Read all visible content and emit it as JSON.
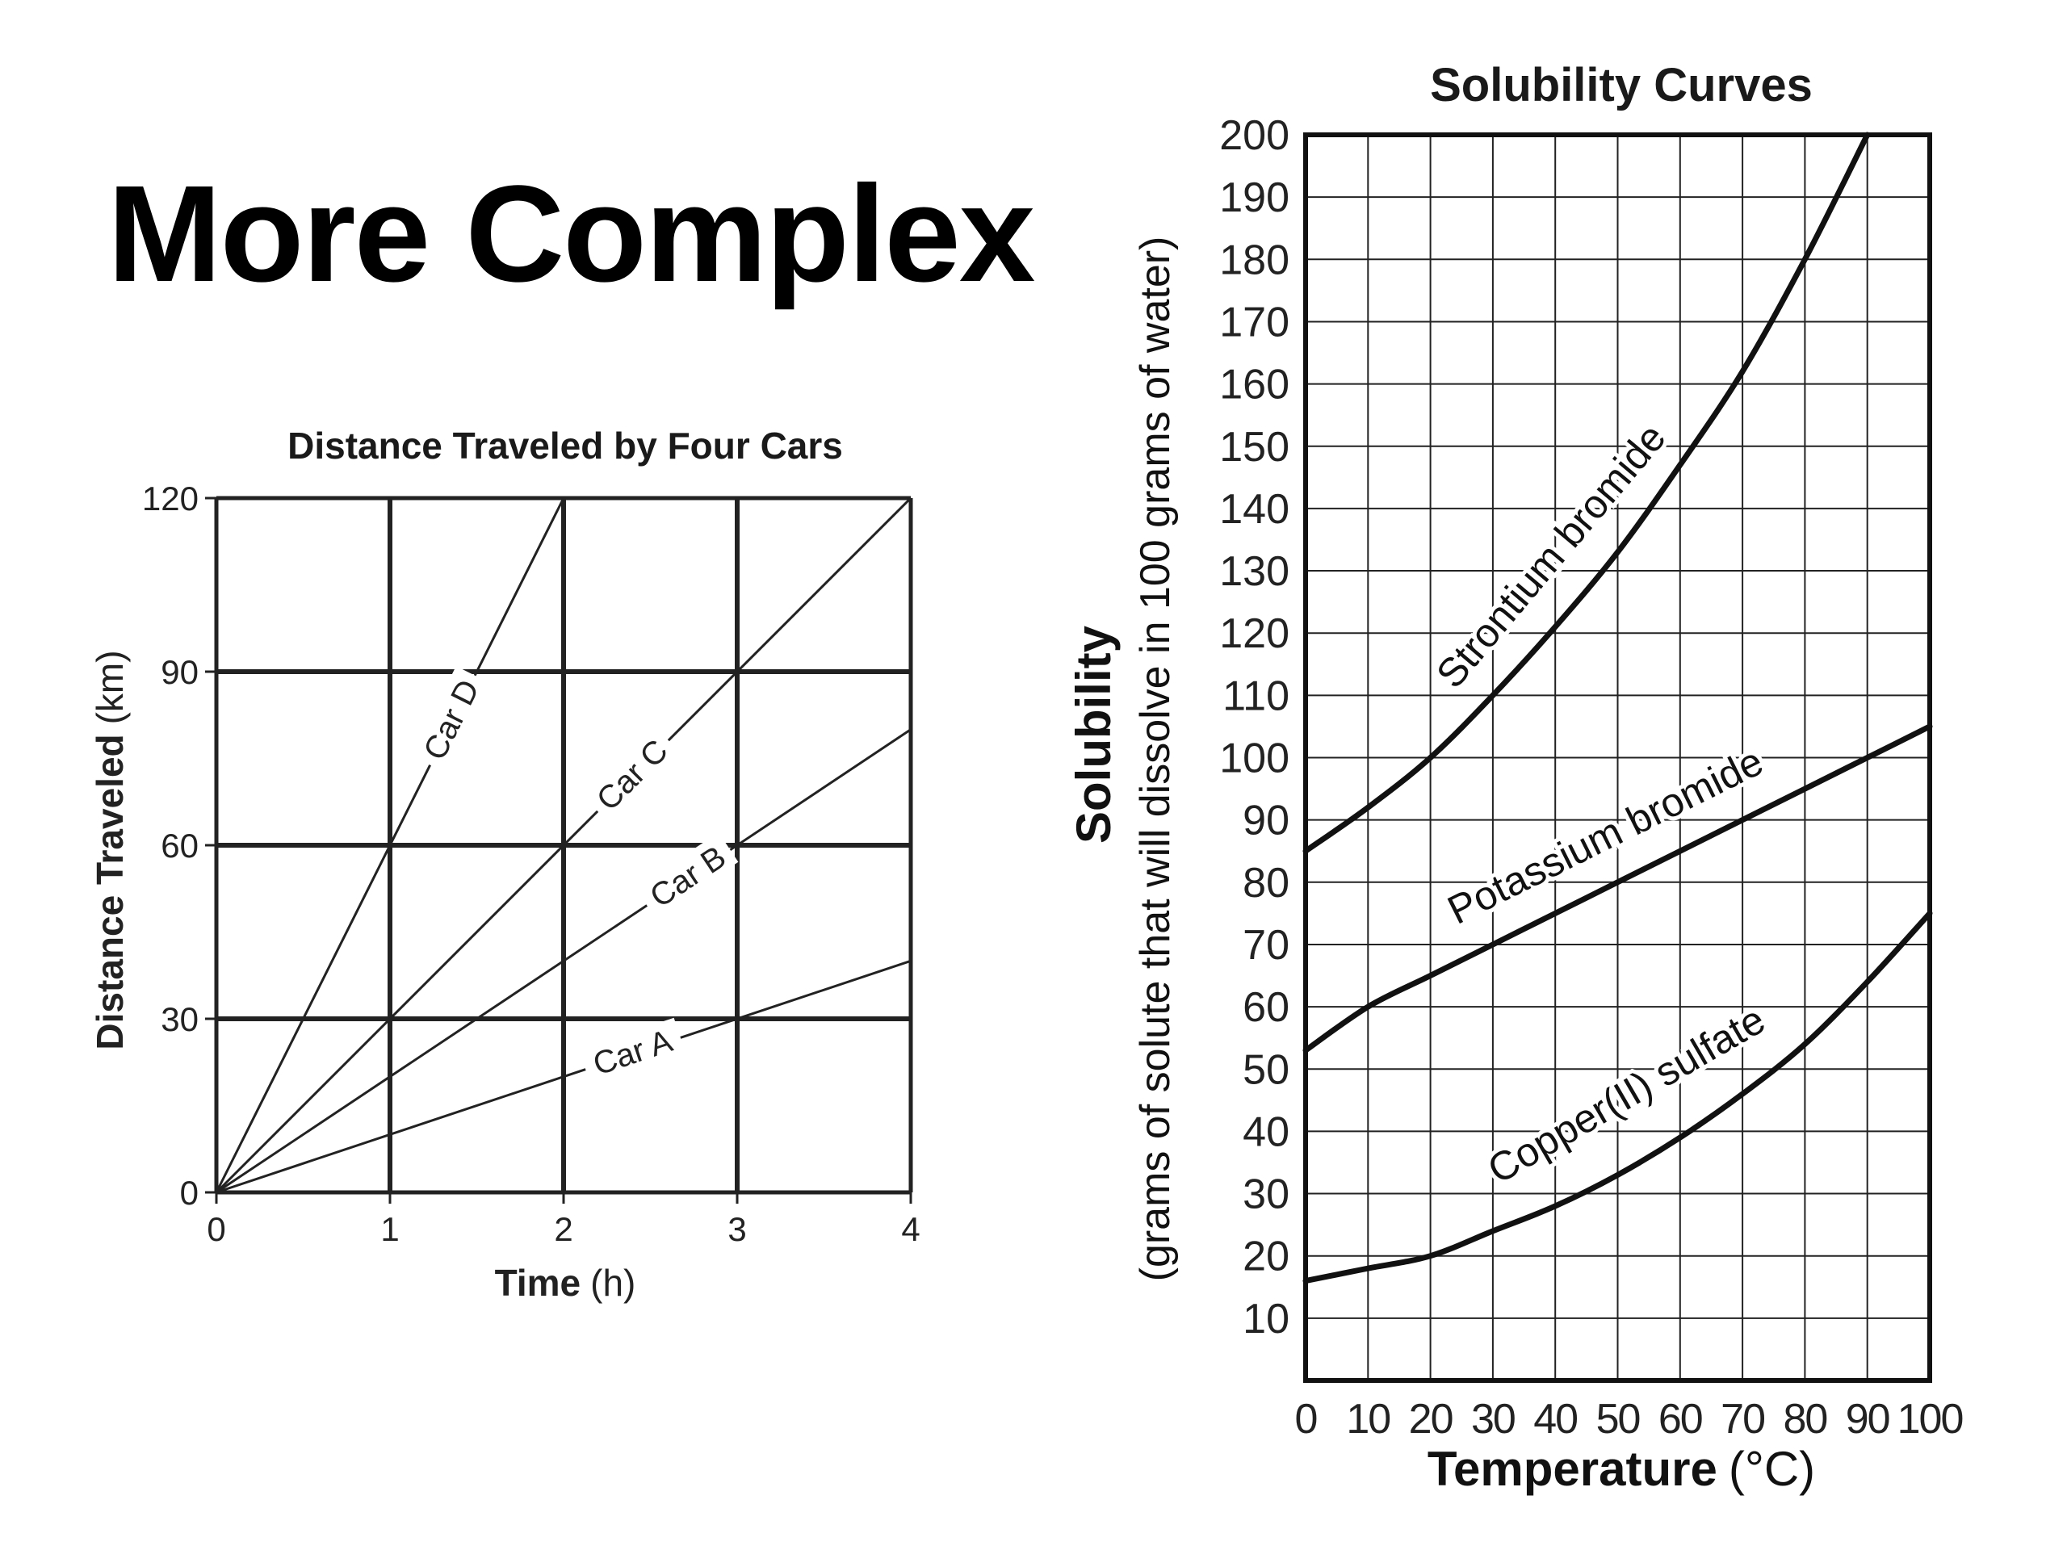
{
  "page": {
    "title": "More Complex"
  },
  "chart_data": [
    {
      "type": "line",
      "title": "Distance Traveled by Four Cars",
      "xlabel_bold": "Time",
      "xlabel_unit": "(h)",
      "ylabel_bold": "Distance Traveled",
      "ylabel_unit": "(km)",
      "xlim": [
        0,
        4
      ],
      "ylim": [
        0,
        120
      ],
      "x_ticks": [
        "0",
        "1",
        "2",
        "3",
        "4"
      ],
      "y_ticks": [
        "0",
        "30",
        "60",
        "90",
        "120"
      ],
      "grid": true,
      "series": [
        {
          "name": "Car A",
          "x": [
            0,
            4
          ],
          "y": [
            0,
            40
          ]
        },
        {
          "name": "Car B",
          "x": [
            0,
            4
          ],
          "y": [
            0,
            80
          ]
        },
        {
          "name": "Car C",
          "x": [
            0,
            4
          ],
          "y": [
            0,
            120
          ]
        },
        {
          "name": "Car D",
          "x": [
            0,
            2
          ],
          "y": [
            0,
            120
          ]
        }
      ]
    },
    {
      "type": "line",
      "title": "Solubility Curves",
      "xlabel_bold": "Temperature",
      "xlabel_unit": "(°C)",
      "ylabel_bold": "Solubility",
      "ylabel_detail": "(grams of solute that will dissolve in 100 grams of water)",
      "xlim": [
        0,
        100
      ],
      "ylim": [
        0,
        200
      ],
      "x_ticks": [
        "0",
        "10",
        "20",
        "30",
        "40",
        "50",
        "60",
        "70",
        "80",
        "90",
        "100"
      ],
      "y_ticks": [
        "10",
        "20",
        "30",
        "40",
        "50",
        "60",
        "70",
        "80",
        "90",
        "100",
        "110",
        "120",
        "130",
        "140",
        "150",
        "160",
        "170",
        "180",
        "190",
        "200"
      ],
      "grid": true,
      "series": [
        {
          "name": "Strontium bromide",
          "x": [
            0,
            10,
            20,
            30,
            40,
            50,
            60,
            70,
            80,
            90
          ],
          "y": [
            85,
            92,
            100,
            110,
            121,
            133,
            147,
            162,
            180,
            200
          ]
        },
        {
          "name": "Potassium bromide",
          "x": [
            0,
            10,
            20,
            30,
            40,
            50,
            60,
            70,
            80,
            90,
            100
          ],
          "y": [
            53,
            60,
            65,
            70,
            75,
            80,
            85,
            90,
            95,
            100,
            105
          ]
        },
        {
          "name": "Copper(II) sulfate",
          "x": [
            0,
            10,
            20,
            30,
            40,
            50,
            60,
            70,
            80,
            90,
            100
          ],
          "y": [
            16,
            18,
            20,
            24,
            28,
            33,
            39,
            46,
            54,
            64,
            75
          ]
        }
      ]
    }
  ]
}
